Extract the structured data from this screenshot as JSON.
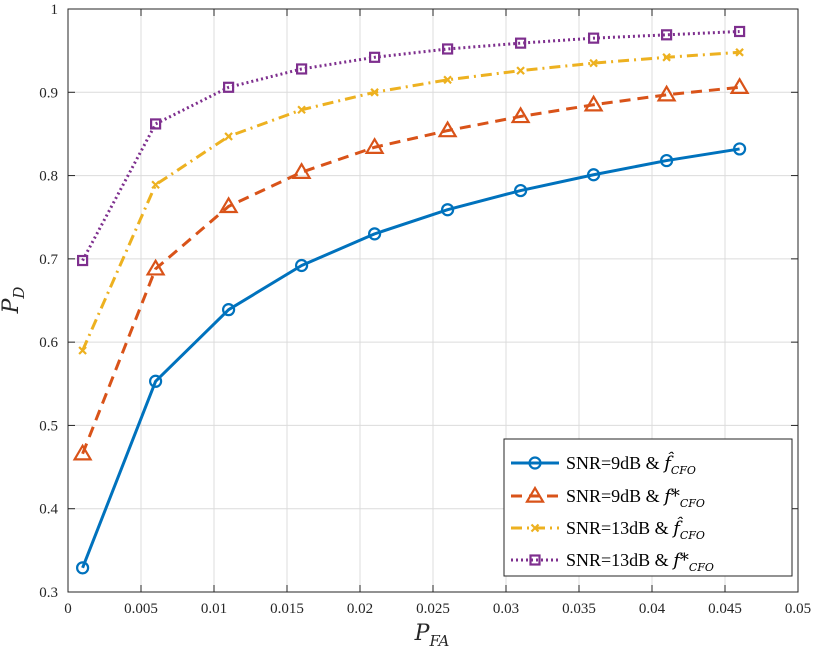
{
  "chart_data": {
    "type": "line",
    "title": "",
    "xlabel": "P_FA",
    "ylabel": "P_D",
    "xlim": [
      0,
      0.05
    ],
    "ylim": [
      0.3,
      1
    ],
    "xticks": [
      "0",
      "0.005",
      "0.01",
      "0.015",
      "0.02",
      "0.025",
      "0.03",
      "0.035",
      "0.04",
      "0.045",
      "0.05"
    ],
    "yticks": [
      "0.3",
      "0.4",
      "0.5",
      "0.6",
      "0.7",
      "0.8",
      "0.9",
      "1"
    ],
    "grid": true,
    "legend_position": "bottom-right",
    "x": [
      0.001,
      0.006,
      0.011,
      0.016,
      0.021,
      0.026,
      0.031,
      0.036,
      0.041,
      0.046
    ],
    "series": [
      {
        "name": "SNR=9dB & f̂_CFO",
        "legend_main": "SNR=9dB & ",
        "legend_sym": "f̂",
        "legend_sub": "CFO",
        "color": "#0072BD",
        "dash": "solid",
        "marker": "circle",
        "values": [
          0.329,
          0.553,
          0.639,
          0.692,
          0.73,
          0.759,
          0.782,
          0.801,
          0.818,
          0.832
        ]
      },
      {
        "name": "SNR=9dB & f*_CFO",
        "legend_main": "SNR=9dB & ",
        "legend_sym": "f*",
        "legend_sub": "CFO",
        "color": "#D95319",
        "dash": "dashed",
        "marker": "triangle",
        "values": [
          0.466,
          0.688,
          0.763,
          0.804,
          0.834,
          0.854,
          0.871,
          0.885,
          0.897,
          0.906
        ]
      },
      {
        "name": "SNR=13dB & f̂_CFO",
        "legend_main": "SNR=13dB & ",
        "legend_sym": "f̂",
        "legend_sub": "CFO",
        "color": "#EDB120",
        "dash": "dashdot",
        "marker": "x",
        "values": [
          0.59,
          0.789,
          0.847,
          0.879,
          0.9,
          0.915,
          0.926,
          0.935,
          0.942,
          0.948
        ]
      },
      {
        "name": "SNR=13dB & f*_CFO",
        "legend_main": "SNR=13dB & ",
        "legend_sym": "f*",
        "legend_sub": "CFO",
        "color": "#7E2F8E",
        "dash": "dotted",
        "marker": "square",
        "values": [
          0.698,
          0.862,
          0.906,
          0.928,
          0.942,
          0.952,
          0.959,
          0.965,
          0.969,
          0.973
        ]
      }
    ]
  }
}
